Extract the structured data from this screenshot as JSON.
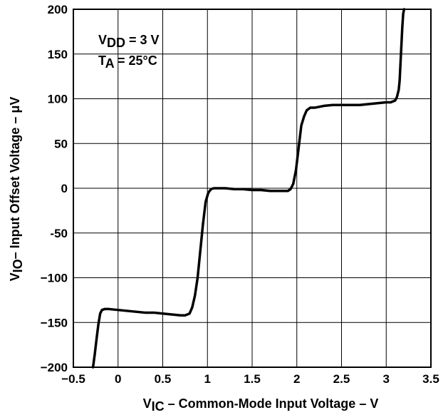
{
  "chart_data": {
    "type": "line",
    "title": "",
    "xlabel": {
      "main": "V",
      "sub": "IC",
      "rest": " – Common-Mode Input Voltage – V"
    },
    "ylabel": {
      "main": "V",
      "sub": "IO",
      "rest": "– Input Offset Voltage –   μV"
    },
    "xlim": [
      -0.5,
      3.5
    ],
    "ylim": [
      -200,
      200
    ],
    "x_ticks": [
      -0.5,
      0,
      0.5,
      1,
      1.5,
      2,
      2.5,
      3,
      3.5
    ],
    "x_tick_labels": [
      "−0.5",
      "0",
      "0.5",
      "1",
      "1.5",
      "2",
      "2.5",
      "3",
      "3.5"
    ],
    "y_ticks": [
      200,
      150,
      100,
      50,
      0,
      -50,
      -100,
      -150,
      -200
    ],
    "y_tick_labels": [
      "200",
      "150",
      "100",
      "50",
      "0",
      "-50",
      "−100",
      "−150",
      "−200"
    ],
    "grid": true,
    "annotations": [
      {
        "main": "V",
        "sub": "DD",
        "rest": " = 3 V"
      },
      {
        "main": "T",
        "sub": "A",
        "rest": " = 25°C"
      }
    ],
    "series": [
      {
        "x": [
          -0.28,
          -0.26,
          -0.24,
          -0.22,
          -0.2,
          -0.18,
          -0.15,
          -0.1,
          0,
          0.1,
          0.2,
          0.3,
          0.4,
          0.5,
          0.6,
          0.7,
          0.75,
          0.8,
          0.83,
          0.86,
          0.89,
          0.92,
          0.95,
          0.98,
          1.01,
          1.04,
          1.07,
          1.1,
          1.15,
          1.2,
          1.3,
          1.4,
          1.5,
          1.6,
          1.7,
          1.8,
          1.9,
          1.93,
          1.96,
          1.99,
          2.02,
          2.05,
          2.08,
          2.11,
          2.15,
          2.2,
          2.3,
          2.4,
          2.5,
          2.6,
          2.7,
          2.8,
          2.9,
          3.0,
          3.05,
          3.1,
          3.12,
          3.14,
          3.15,
          3.16,
          3.17,
          3.18,
          3.19,
          3.2
        ],
        "values": [
          -200,
          -185,
          -168,
          -152,
          -140,
          -136,
          -135,
          -135,
          -136,
          -137,
          -138,
          -139,
          -139,
          -140,
          -141,
          -142,
          -142,
          -140,
          -133,
          -120,
          -100,
          -70,
          -40,
          -15,
          -5,
          -1,
          0,
          0,
          0,
          0,
          -1,
          -1,
          -2,
          -2,
          -3,
          -3,
          -3,
          -1,
          5,
          20,
          45,
          70,
          80,
          87,
          90,
          90,
          92,
          93,
          93,
          93,
          93,
          94,
          95,
          96,
          96,
          98,
          102,
          110,
          120,
          140,
          160,
          180,
          195,
          200
        ]
      }
    ]
  }
}
